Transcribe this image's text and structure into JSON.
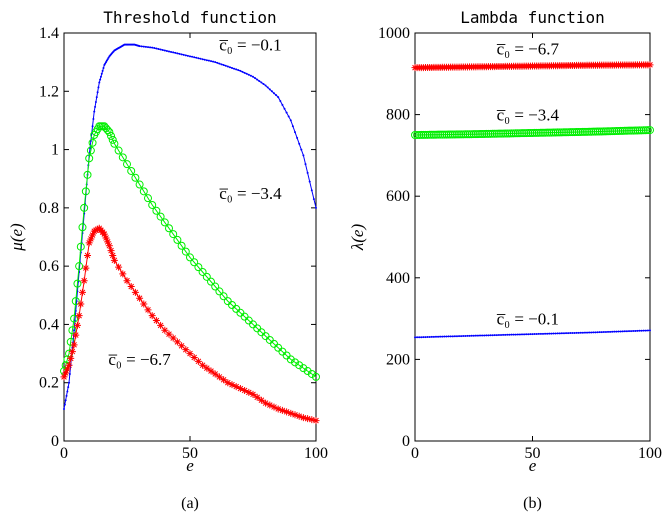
{
  "chart_data": [
    {
      "type": "line",
      "title": "Threshold function",
      "xlabel": "e",
      "ylabel": "μ(e)",
      "caption": "(a)",
      "xlim": [
        0,
        100
      ],
      "ylim": [
        0,
        1.4
      ],
      "xticks": [
        0,
        50,
        100
      ],
      "yticks": [
        0,
        0.2,
        0.4,
        0.6,
        0.8,
        1,
        1.2,
        1.4
      ],
      "grid": false,
      "series": [
        {
          "color": "#0000ff",
          "marker": "dot",
          "x": [
            0,
            2,
            4,
            6,
            8,
            10,
            12,
            14,
            16,
            18,
            20,
            22,
            24,
            26,
            28,
            30,
            35,
            40,
            45,
            50,
            55,
            60,
            65,
            70,
            75,
            80,
            85,
            90,
            95,
            100
          ],
          "y": [
            0.11,
            0.2,
            0.38,
            0.58,
            0.78,
            0.98,
            1.13,
            1.23,
            1.29,
            1.32,
            1.34,
            1.35,
            1.36,
            1.36,
            1.36,
            1.355,
            1.35,
            1.34,
            1.33,
            1.32,
            1.31,
            1.3,
            1.285,
            1.27,
            1.25,
            1.22,
            1.18,
            1.1,
            0.98,
            0.8
          ]
        },
        {
          "color": "#00ee00",
          "marker": "circle",
          "x": [
            0,
            2,
            4,
            6,
            8,
            10,
            12,
            14,
            16,
            18,
            20,
            25,
            30,
            35,
            40,
            45,
            50,
            55,
            60,
            65,
            70,
            75,
            80,
            85,
            90,
            95,
            100
          ],
          "y": [
            0.24,
            0.3,
            0.42,
            0.6,
            0.8,
            0.97,
            1.05,
            1.08,
            1.08,
            1.06,
            1.02,
            0.95,
            0.88,
            0.81,
            0.75,
            0.69,
            0.63,
            0.58,
            0.53,
            0.48,
            0.44,
            0.4,
            0.36,
            0.32,
            0.28,
            0.25,
            0.22
          ]
        },
        {
          "color": "#ff0000",
          "marker": "asterisk",
          "x": [
            0,
            2,
            4,
            6,
            8,
            10,
            12,
            14,
            16,
            18,
            20,
            25,
            30,
            35,
            40,
            45,
            50,
            55,
            60,
            65,
            70,
            75,
            80,
            85,
            90,
            95,
            100
          ],
          "y": [
            0.22,
            0.26,
            0.33,
            0.43,
            0.55,
            0.68,
            0.72,
            0.73,
            0.71,
            0.67,
            0.62,
            0.55,
            0.49,
            0.43,
            0.38,
            0.34,
            0.3,
            0.26,
            0.23,
            0.2,
            0.18,
            0.16,
            0.13,
            0.11,
            0.095,
            0.08,
            0.07
          ]
        }
      ],
      "annotations": [
        {
          "text": "c̅₀ = −0.1",
          "x": 74,
          "y": 1.34,
          "series": 0
        },
        {
          "text": "c̅₀ = −3.4",
          "x": 74,
          "y": 0.83,
          "series": 1
        },
        {
          "text": "c̅₀ = −6.7",
          "x": 30,
          "y": 0.26,
          "series": 2
        }
      ]
    },
    {
      "type": "line",
      "title": "Lambda function",
      "xlabel": "e",
      "ylabel": "λ(e)",
      "caption": "(b)",
      "xlim": [
        0,
        100
      ],
      "ylim": [
        0,
        1000
      ],
      "xticks": [
        0,
        50,
        100
      ],
      "yticks": [
        0,
        200,
        400,
        600,
        800,
        1000
      ],
      "grid": false,
      "series": [
        {
          "color": "#ff0000",
          "marker": "asterisk",
          "x": [
            0,
            25,
            50,
            75,
            100
          ],
          "y": [
            915,
            917,
            919,
            921,
            922
          ]
        },
        {
          "color": "#00ee00",
          "marker": "circle",
          "x": [
            0,
            25,
            50,
            75,
            100
          ],
          "y": [
            750,
            752,
            755,
            758,
            762
          ]
        },
        {
          "color": "#0000ff",
          "marker": "dot",
          "x": [
            0,
            25,
            50,
            75,
            100
          ],
          "y": [
            254,
            258,
            262,
            266,
            271
          ]
        }
      ],
      "annotations": [
        {
          "text": "c̅₀ = −6.7",
          "x": 48,
          "y": 947,
          "series": 0
        },
        {
          "text": "c̅₀ = −3.4",
          "x": 48,
          "y": 785,
          "series": 1
        },
        {
          "text": "c̅₀ = −0.1",
          "x": 48,
          "y": 285,
          "series": 2
        }
      ]
    }
  ]
}
